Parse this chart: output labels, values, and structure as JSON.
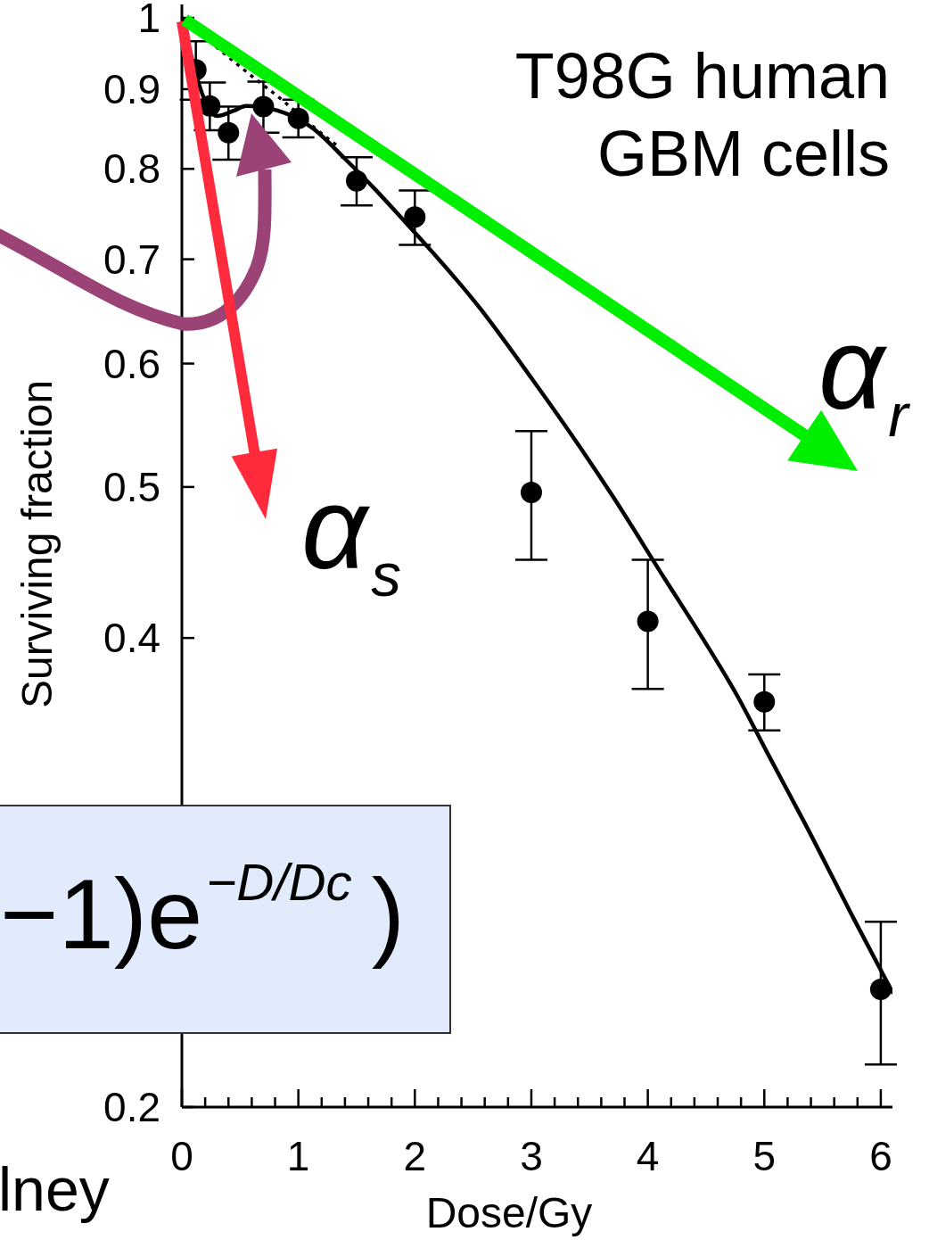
{
  "chart_data": {
    "type": "scatter",
    "title": "T98G human GBM cells",
    "xlabel": "Dose/Gy",
    "ylabel": "Surviving fraction",
    "annotations": [
      "α$_{r}$",
      "α$_{s}$",
      "−1)e$^{−D/Dc}$)",
      "lney"
    ],
    "xlim": [
      0,
      6.1
    ],
    "xticks": [
      0,
      {
        "value": 0.2,
        "label": null
      },
      {
        "value": 0.4,
        "label": null
      },
      {
        "value": 0.6,
        "label": null
      },
      {
        "value": 0.8,
        "label": null
      },
      1,
      {
        "value": 1.2,
        "label": null
      },
      {
        "value": 1.4,
        "label": null
      },
      {
        "value": 1.6,
        "label": null
      },
      {
        "value": 1.8,
        "label": null
      },
      2,
      {
        "value": 2.2,
        "label": null
      },
      {
        "value": 2.4,
        "label": null
      },
      {
        "value": 2.6,
        "label": null
      },
      {
        "value": 2.8,
        "label": null
      },
      3,
      {
        "value": 3.2,
        "label": null
      },
      {
        "value": 3.4,
        "label": null
      },
      {
        "value": 3.6,
        "label": null
      },
      {
        "value": 3.8,
        "label": null
      },
      4,
      {
        "value": 4.2,
        "label": null
      },
      {
        "value": 4.4,
        "label": null
      },
      {
        "value": 4.6,
        "label": null
      },
      {
        "value": 4.8,
        "label": null
      },
      5,
      {
        "value": 5.2,
        "label": null
      },
      {
        "value": 5.4,
        "label": null
      },
      {
        "value": 5.6,
        "label": null
      },
      {
        "value": 5.8,
        "label": null
      },
      6
    ],
    "ylim": [
      0.2,
      1.02
    ],
    "yticks": [
      0.2,
      0.4,
      0.5,
      0.6,
      0.7,
      0.8,
      0.9,
      1
    ],
    "log": "y",
    "series": [
      {
        "color": "#000000",
        "marker": "circle",
        "x": [
          0.12,
          0.24,
          0.4,
          0.7,
          1,
          1.5,
          2,
          3,
          4,
          5,
          6
        ],
        "values": [
          0.926,
          0.878,
          0.844,
          0.877,
          0.862,
          0.786,
          0.745,
          0.496,
          0.41,
          0.364,
          0.238
        ],
        "errors": [
          0.04,
          0.031,
          0.033,
          0.033,
          0.024,
          0.028,
          0.03,
          0.047,
          0.039,
          0.015,
          0.025
        ]
      },
      {
        "type": "line",
        "color": "#000000",
        "line_style": "solid",
        "x": [
          0,
          0.3,
          0.45,
          0.55,
          0.82,
          1.12,
          1.4,
          1.66,
          1.85,
          2.56,
          3.01,
          3.39,
          3.7,
          4.15,
          4.41,
          4.77,
          5.04,
          5.35,
          5.77,
          6.1
        ],
        "values": [
          1,
          0.865,
          0.872,
          0.878,
          0.872,
          0.85,
          0.812,
          0.776,
          0.749,
          0.651,
          0.586,
          0.534,
          0.493,
          0.436,
          0.4065,
          0.367,
          0.336,
          0.304,
          0.264,
          0.237
        ]
      },
      {
        "type": "line",
        "color": "#000000",
        "line_style": "dotted",
        "x": [
          0,
          0.55,
          0.89,
          1.14,
          1.35
        ],
        "values": [
          1,
          0.924,
          0.882,
          0.85,
          0.826
        ]
      }
    ]
  }
}
